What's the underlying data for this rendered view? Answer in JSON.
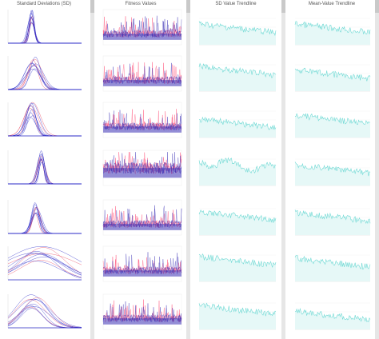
{
  "columns": [
    {
      "title": "Standard Deviations (SD)"
    },
    {
      "title": "Fitness Values"
    },
    {
      "title": "SD Value Trendline"
    },
    {
      "title": "Mean-Value Trendline"
    }
  ],
  "rows": 7,
  "colors": {
    "hist_blue": "#2a2ac8",
    "hist_red": "#e8405a",
    "fitness_blue": "#3b2fb5",
    "fitness_red": "#ff3d6a",
    "trend_line": "#6fd9d4",
    "trend_fill": "#e6f8f7",
    "scrollbar": "#e6e6e6",
    "scrollbar_thumb": "#c9c9c9"
  }
}
